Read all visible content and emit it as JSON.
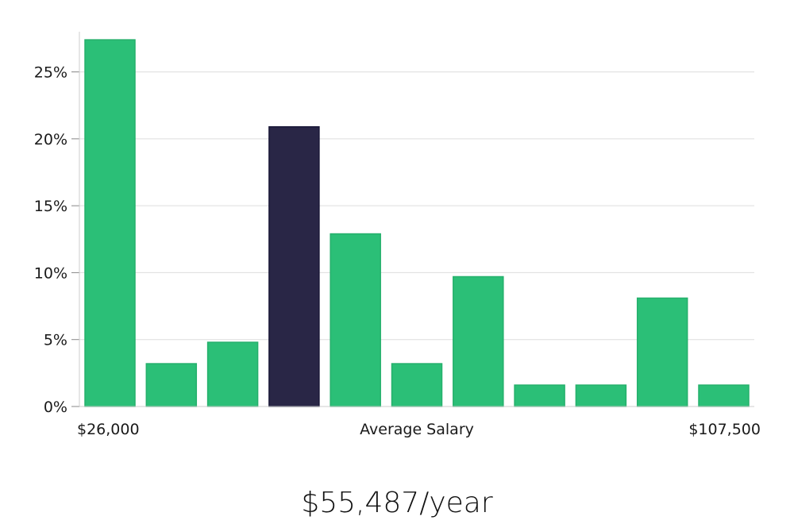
{
  "chart_data": {
    "type": "bar",
    "categories": [
      "1",
      "2",
      "3",
      "4",
      "5",
      "6",
      "7",
      "8",
      "9",
      "10",
      "11"
    ],
    "values": [
      27.4,
      3.2,
      4.8,
      20.9,
      12.9,
      3.2,
      9.7,
      1.6,
      1.6,
      8.1,
      1.6
    ],
    "highlight_index": 3,
    "ylim": [
      0,
      28
    ],
    "yticks": [
      0,
      5,
      10,
      15,
      20,
      25
    ],
    "ytick_labels": [
      "0%",
      "5%",
      "10%",
      "15%",
      "20%",
      "25%"
    ],
    "x_min_label": "$26,000",
    "x_max_label": "$107,500",
    "xlabel": "Average Salary",
    "grid": true,
    "colors": {
      "bar": "#2bbf77",
      "highlight": "#292646",
      "grid": "#dddddd",
      "axis": "#cccccc"
    }
  },
  "summary": "$55,487/year"
}
